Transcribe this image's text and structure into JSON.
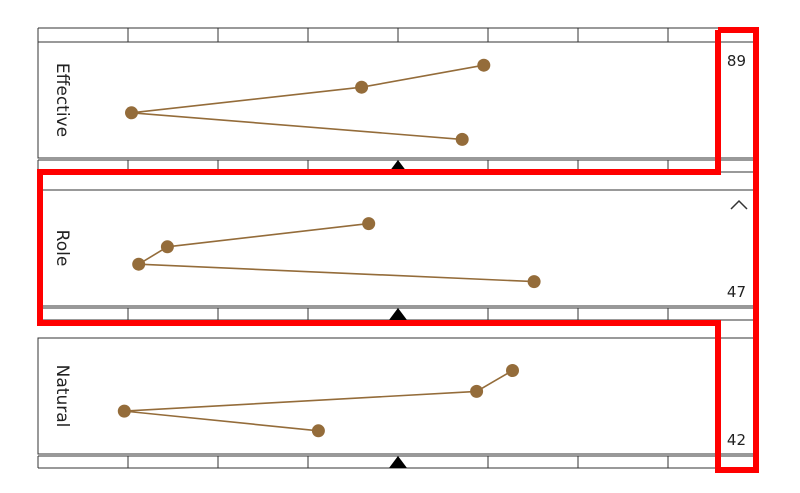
{
  "chart_data": {
    "type": "scatter",
    "connected": true,
    "x_range": [
      0,
      100
    ],
    "y_range": [
      0,
      100
    ],
    "marker_color": "#946c3a",
    "line_color": "#946c3a",
    "highlight_color": "#ff0000",
    "panels": [
      {
        "label": "Effective",
        "value": "89",
        "points": [
          {
            "x": 62,
            "y": 20
          },
          {
            "x": 45,
            "y": 39
          },
          {
            "x": 13,
            "y": 61
          },
          {
            "x": 59,
            "y": 84
          }
        ]
      },
      {
        "label": "Role",
        "value": "47",
        "show_collapse": true,
        "points": [
          {
            "x": 46,
            "y": 29
          },
          {
            "x": 18,
            "y": 49
          },
          {
            "x": 14,
            "y": 64
          },
          {
            "x": 69,
            "y": 79
          }
        ]
      },
      {
        "label": "Natural",
        "value": "42",
        "points": [
          {
            "x": 66,
            "y": 28
          },
          {
            "x": 61,
            "y": 46
          },
          {
            "x": 12,
            "y": 63
          },
          {
            "x": 39,
            "y": 80
          }
        ]
      }
    ]
  }
}
